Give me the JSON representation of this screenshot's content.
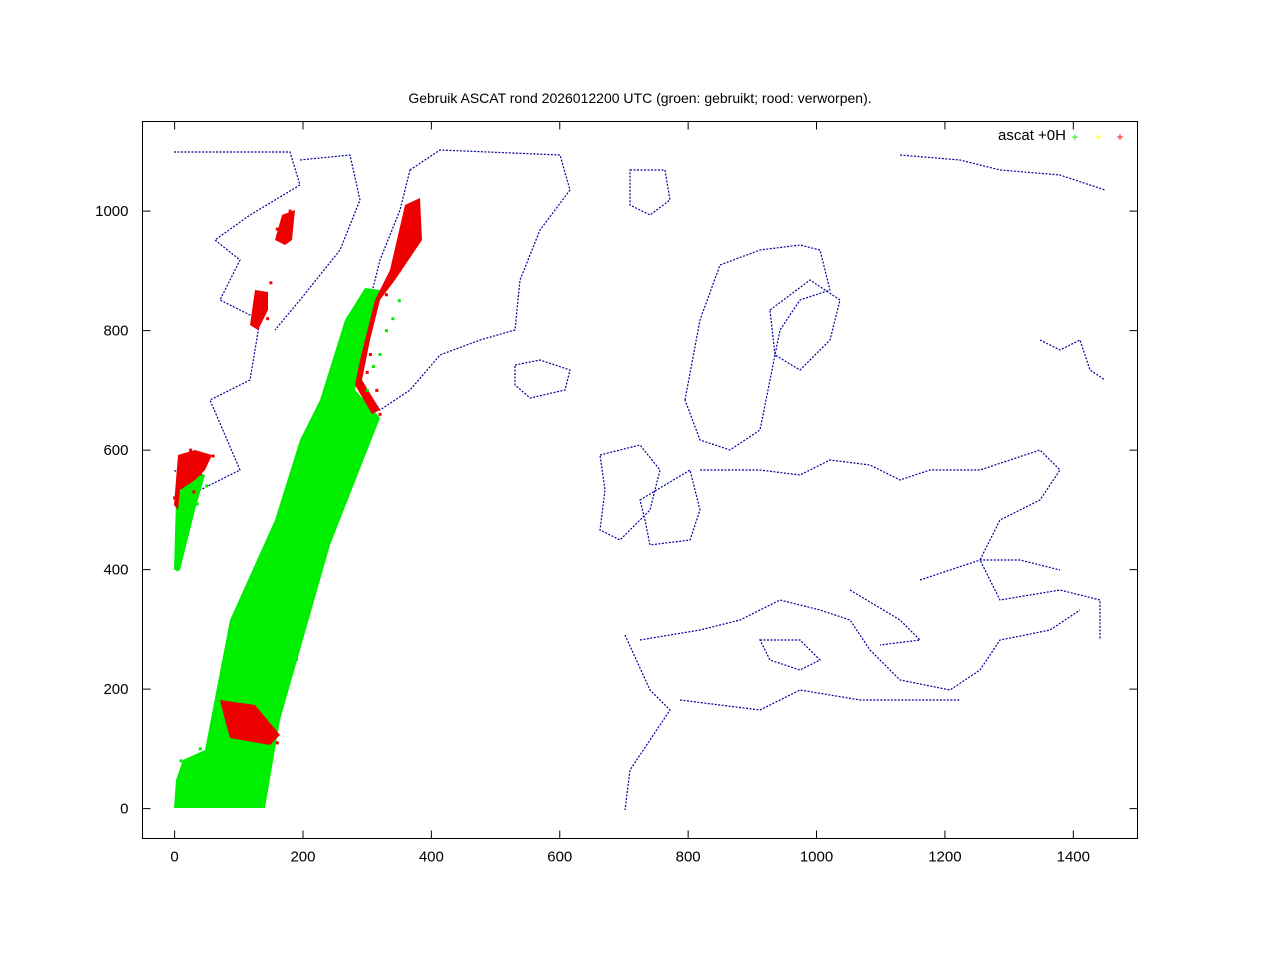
{
  "chart_data": {
    "type": "scatter",
    "title": "Gebruik ASCAT rond 2026012200 UTC (groen: gebruikt; rood: verworpen).",
    "xlabel": "",
    "ylabel": "",
    "xlim": [
      -50,
      1500
    ],
    "ylim": [
      -50,
      1150
    ],
    "x_ticks": [
      0,
      200,
      400,
      600,
      800,
      1000,
      1200,
      1400
    ],
    "y_ticks": [
      0,
      200,
      400,
      600,
      800,
      1000
    ],
    "grid": false,
    "legend_position": "top-right",
    "series": [
      {
        "name": "ascat +0H",
        "color": "#00ee00",
        "marker": "plus",
        "points": [
          [
            5,
            5
          ],
          [
            60,
            10
          ],
          [
            130,
            5
          ],
          [
            140,
            60
          ],
          [
            175,
            200
          ],
          [
            210,
            350
          ],
          [
            240,
            480
          ],
          [
            270,
            600
          ],
          [
            300,
            700
          ],
          [
            320,
            760
          ],
          [
            20,
            50
          ],
          [
            80,
            40
          ],
          [
            110,
            100
          ],
          [
            150,
            150
          ],
          [
            190,
            250
          ],
          [
            220,
            400
          ],
          [
            250,
            520
          ],
          [
            280,
            640
          ],
          [
            310,
            740
          ],
          [
            350,
            850
          ],
          [
            10,
            80
          ],
          [
            40,
            100
          ],
          [
            100,
            90
          ],
          [
            160,
            200
          ],
          [
            200,
            300
          ],
          [
            230,
            420
          ],
          [
            260,
            560
          ],
          [
            290,
            660
          ],
          [
            330,
            800
          ],
          [
            340,
            820
          ],
          [
            5,
            400
          ],
          [
            20,
            460
          ],
          [
            35,
            510
          ],
          [
            50,
            540
          ]
        ]
      },
      {
        "name": "",
        "color": "#ffff00",
        "marker": "plus",
        "points": []
      },
      {
        "name": "",
        "color": "#ee0000",
        "marker": "plus",
        "points": [
          [
            80,
            170
          ],
          [
            100,
            160
          ],
          [
            120,
            150
          ],
          [
            140,
            130
          ],
          [
            160,
            110
          ],
          [
            100,
            130
          ],
          [
            320,
            660
          ],
          [
            315,
            700
          ],
          [
            300,
            730
          ],
          [
            305,
            760
          ],
          [
            330,
            860
          ],
          [
            350,
            900
          ],
          [
            370,
            1000
          ],
          [
            380,
            1010
          ],
          [
            360,
            960
          ],
          [
            160,
            970
          ],
          [
            175,
            990
          ],
          [
            180,
            1000
          ],
          [
            140,
            850
          ],
          [
            150,
            880
          ],
          [
            145,
            820
          ],
          [
            0,
            520
          ],
          [
            10,
            580
          ],
          [
            25,
            600
          ],
          [
            40,
            560
          ],
          [
            60,
            590
          ],
          [
            30,
            530
          ]
        ]
      }
    ],
    "coastline_color": "#00009b"
  }
}
